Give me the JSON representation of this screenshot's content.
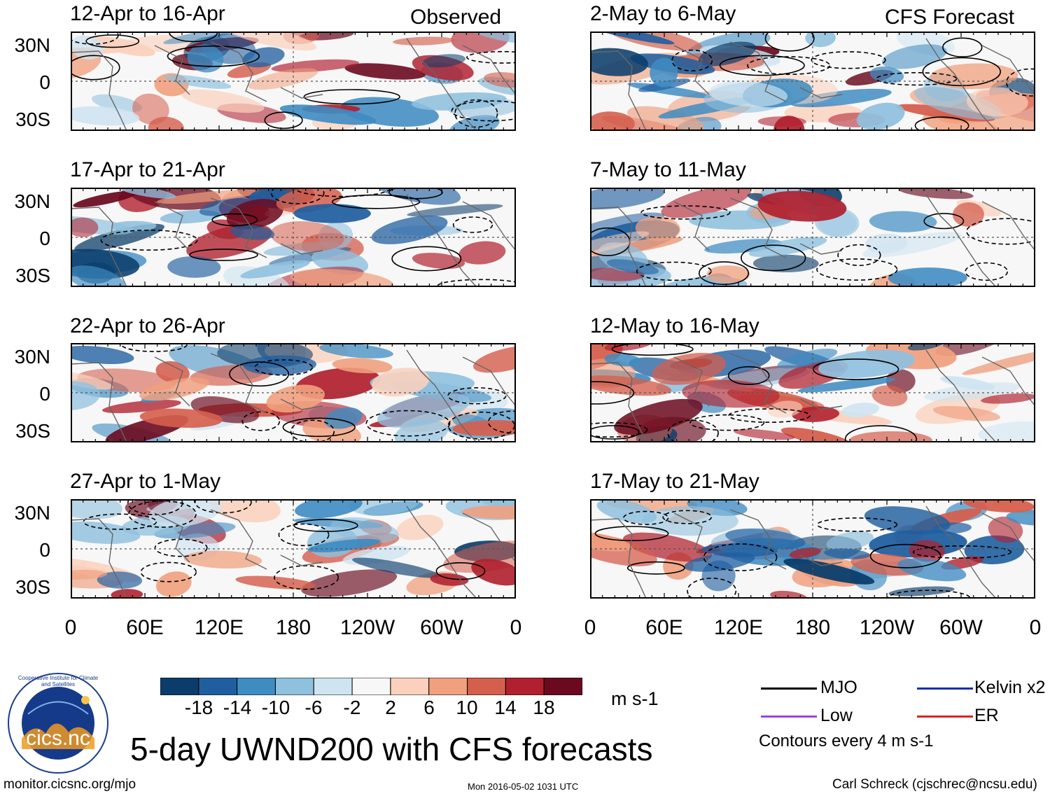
{
  "title": "5-day UWND200 with CFS forecasts",
  "footer": {
    "url": "monitor.cicsnc.org/mjo",
    "timestamp": "Mon 2016-05-02 1031 UTC",
    "author": "Carl Schreck (cjschrec@ncsu.edu)"
  },
  "logo": {
    "text": "cics.nc",
    "ring_text": "Cooperative Institute for Climate and Satellites"
  },
  "columns": {
    "left_label": "Observed",
    "right_label": "CFS Forecast"
  },
  "panels_left": [
    {
      "period": "12-Apr to 16-Apr"
    },
    {
      "period": "17-Apr to 21-Apr"
    },
    {
      "period": "22-Apr to 26-Apr"
    },
    {
      "period": "27-Apr to 1-May"
    }
  ],
  "panels_right": [
    {
      "period": "2-May to 6-May"
    },
    {
      "period": "7-May to 11-May"
    },
    {
      "period": "12-May to 16-May"
    },
    {
      "period": "17-May to 21-May"
    }
  ],
  "y_axis_labels": [
    "30N",
    "0",
    "30S"
  ],
  "x_axis_labels": [
    "0",
    "60E",
    "120E",
    "180",
    "120W",
    "60W",
    "0"
  ],
  "colorbar": {
    "units": "m s-1",
    "ticks": [
      "-18",
      "-14",
      "-10",
      "-6",
      "-2",
      "2",
      "6",
      "10",
      "14",
      "18"
    ],
    "colors": [
      "#0a3d6b",
      "#1f5fa0",
      "#3f8cc2",
      "#8fc0de",
      "#cfe4f1",
      "#f7f7f7",
      "#fbd1bd",
      "#f0a07e",
      "#d55f4d",
      "#b0202e",
      "#6b0a1f"
    ]
  },
  "legend": {
    "items": [
      {
        "label": "MJO",
        "color": "#000000"
      },
      {
        "label": "Kelvin x2",
        "color": "#1a2fb0"
      },
      {
        "label": "Low",
        "color": "#a040e0"
      },
      {
        "label": "ER",
        "color": "#e02020"
      }
    ],
    "contour_note": "Contours every 4 m s-1"
  }
}
